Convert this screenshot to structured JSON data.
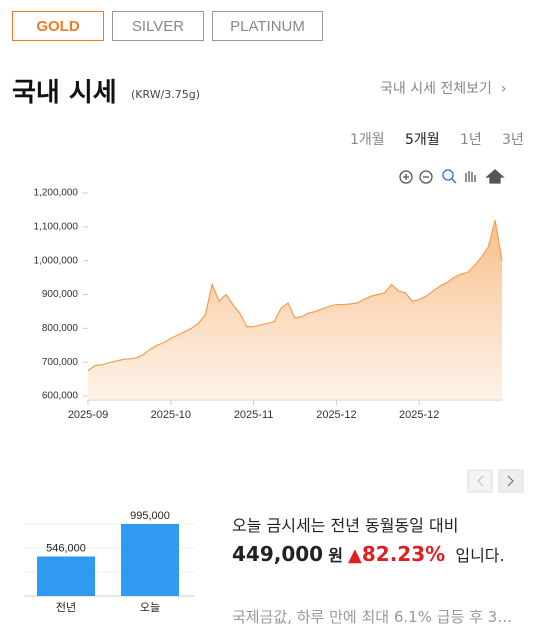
{
  "tabs": [
    "GOLD",
    "SILVER",
    "PLATINUM"
  ],
  "header": {
    "title": "국내 시세",
    "unit": "(KRW/3.75g)",
    "link": "국내 시세 전체보기"
  },
  "periods": [
    "1개월",
    "5개월",
    "1년",
    "3년"
  ],
  "chart_data": [
    {
      "type": "area",
      "color": "#f0a050",
      "categories": [
        "2025-09",
        null,
        null,
        null,
        null,
        null,
        null,
        null,
        null,
        null,
        null,
        null,
        "2025-10",
        null,
        null,
        null,
        null,
        null,
        null,
        null,
        null,
        null,
        null,
        null,
        "2025-11",
        null,
        null,
        null,
        null,
        null,
        null,
        null,
        null,
        null,
        null,
        null,
        "2025-12",
        null,
        null,
        null,
        null,
        null,
        null,
        null,
        null,
        null,
        null,
        null,
        "2025-12",
        null,
        null,
        null,
        null,
        null,
        null,
        null,
        null,
        null,
        null,
        null,
        null
      ],
      "values": [
        675000,
        690000,
        692000,
        698000,
        703000,
        708000,
        710000,
        712000,
        722000,
        738000,
        750000,
        758000,
        770000,
        780000,
        790000,
        800000,
        815000,
        840000,
        930000,
        880000,
        900000,
        870000,
        845000,
        805000,
        805000,
        810000,
        815000,
        820000,
        860000,
        875000,
        830000,
        835000,
        845000,
        850000,
        858000,
        865000,
        870000,
        870000,
        872000,
        875000,
        885000,
        895000,
        900000,
        905000,
        930000,
        910000,
        905000,
        880000,
        885000,
        895000,
        910000,
        925000,
        935000,
        950000,
        960000,
        965000,
        985000,
        1010000,
        1040000,
        1120000,
        1000000
      ],
      "ylim": [
        600000,
        1200000
      ],
      "yticks": [
        {
          "value": 600000,
          "label": "600,000"
        },
        {
          "value": 700000,
          "label": "700,000"
        },
        {
          "value": 800000,
          "label": "800,000"
        },
        {
          "value": 900000,
          "label": "900,000"
        },
        {
          "value": 1000000,
          "label": "1,000,000"
        },
        {
          "value": 1100000,
          "label": "1,100,000"
        },
        {
          "value": 1200000,
          "label": "1,200,000"
        }
      ]
    },
    {
      "type": "bar",
      "color": "#2f9af0",
      "categories": [
        "전년",
        "오늘"
      ],
      "values": [
        546000,
        995000
      ],
      "value_labels": [
        "546,000",
        "995,000"
      ]
    }
  ],
  "summary": {
    "text": "오늘 금시세는 전년 동월동일 대비",
    "diff": "449,000",
    "unit": "원",
    "arrow": "▲",
    "percent": "82.23%",
    "suffix": "입니다.",
    "news": "국제금값, 하루 만에 최대 6.1% 급등 후 3…"
  }
}
